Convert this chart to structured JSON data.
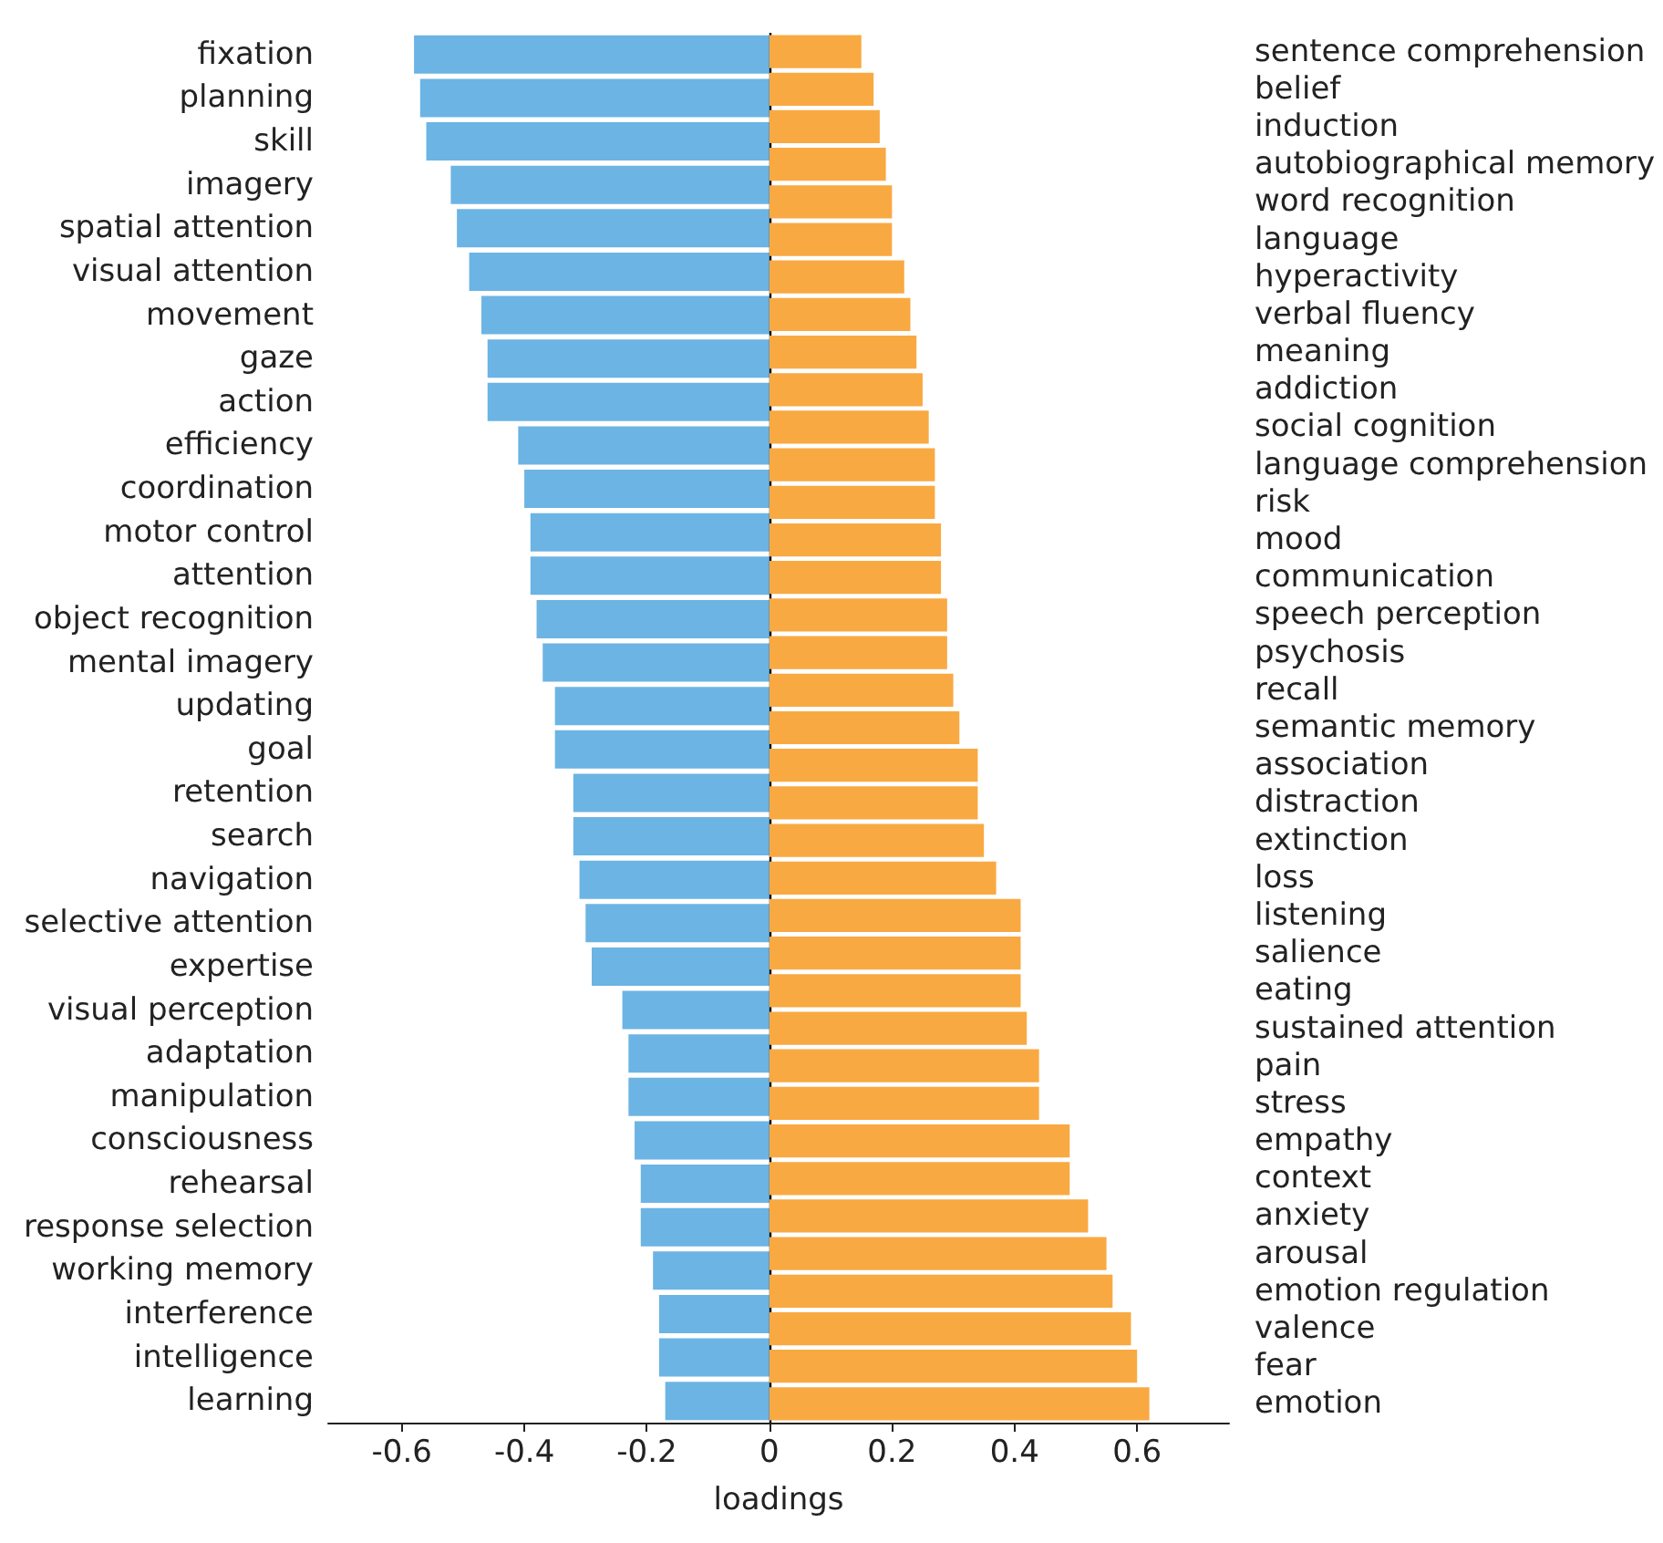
{
  "chart_data": [
    {
      "type": "bar",
      "orientation": "horizontal",
      "xlabel": "loadings",
      "xlim": [
        -0.72,
        0.75
      ],
      "xticks": [
        -0.6,
        -0.4,
        -0.2,
        0,
        0.2,
        0.4,
        0.6
      ],
      "grid": false,
      "categories": [
        "fixation",
        "planning",
        "skill",
        "imagery",
        "spatial attention",
        "visual attention",
        "movement",
        "gaze",
        "action",
        "efficiency",
        "coordination",
        "motor control",
        "attention",
        "object recognition",
        "mental imagery",
        "updating",
        "goal",
        "retention",
        "search",
        "navigation",
        "selective attention",
        "expertise",
        "visual perception",
        "adaptation",
        "manipulation",
        "consciousness",
        "rehearsal",
        "response selection",
        "working memory",
        "interference",
        "intelligence",
        "learning"
      ],
      "ref_lines": [
        {
          "axis": "x",
          "value": 0,
          "color": "#000000"
        }
      ],
      "series": [
        {
          "color": "#6cb4e4",
          "values": [
            -0.58,
            -0.57,
            -0.56,
            -0.52,
            -0.51,
            -0.49,
            -0.47,
            -0.46,
            -0.46,
            -0.41,
            -0.4,
            -0.39,
            -0.39,
            -0.38,
            -0.37,
            -0.35,
            -0.35,
            -0.32,
            -0.32,
            -0.31,
            -0.3,
            -0.29,
            -0.24,
            -0.23,
            -0.23,
            -0.22,
            -0.21,
            -0.21,
            -0.19,
            -0.18,
            -0.18,
            -0.17
          ]
        }
      ]
    },
    {
      "type": "bar",
      "orientation": "horizontal",
      "xlim": [
        -0.72,
        0.75
      ],
      "xticks": [
        -0.6,
        -0.4,
        -0.2,
        0,
        0.2,
        0.4,
        0.6
      ],
      "grid": false,
      "tick_labels": "y",
      "categories": [
        "sentence comprehension",
        "belief",
        "induction",
        "autobiographical memory",
        "word recognition",
        "language",
        "hyperactivity",
        "verbal fluency",
        "meaning",
        "addiction",
        "social cognition",
        "language comprehension",
        "risk",
        "mood",
        "communication",
        "speech perception",
        "psychosis",
        "recall",
        "semantic memory",
        "association",
        "distraction",
        "extinction",
        "loss",
        "listening",
        "salience",
        "eating",
        "sustained attention",
        "pain",
        "stress",
        "empathy",
        "context",
        "anxiety",
        "arousal",
        "emotion regulation",
        "valence",
        "fear",
        "emotion"
      ],
      "series": [
        {
          "color": "#f9a942",
          "axis": "y2",
          "values": [
            0.15,
            0.17,
            0.18,
            0.19,
            0.2,
            0.2,
            0.22,
            0.23,
            0.24,
            0.25,
            0.26,
            0.27,
            0.27,
            0.28,
            0.28,
            0.29,
            0.29,
            0.3,
            0.31,
            0.34,
            0.34,
            0.35,
            0.37,
            0.41,
            0.41,
            0.41,
            0.42,
            0.44,
            0.44,
            0.49,
            0.49,
            0.52,
            0.55,
            0.56,
            0.59,
            0.6,
            0.62
          ]
        }
      ]
    }
  ]
}
